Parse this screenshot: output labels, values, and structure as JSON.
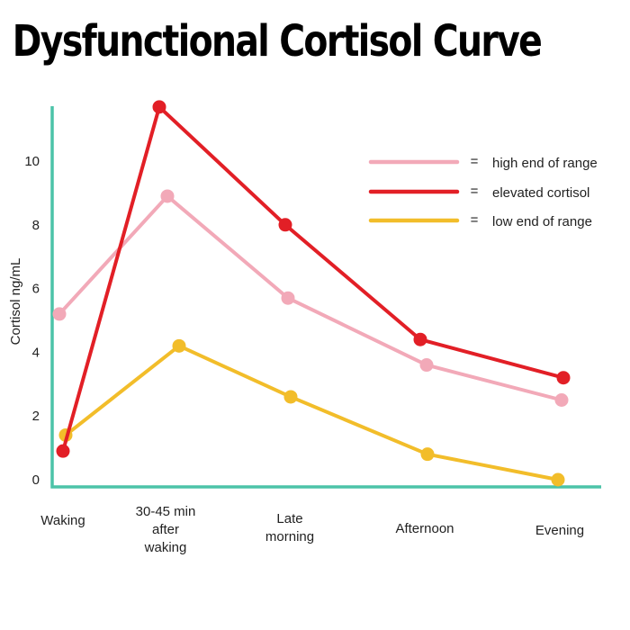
{
  "chart_data": {
    "type": "line",
    "title": "Dysfunctional Cortisol Curve",
    "xlabel": "",
    "ylabel": "Cortisol ng/mL",
    "categories": [
      "Waking",
      "30-45 min after waking",
      "Late morning",
      "Afternoon",
      "Evening"
    ],
    "yticks": [
      0,
      2,
      4,
      6,
      8,
      10
    ],
    "ylim": [
      0,
      11.5
    ],
    "legend_position": "top-right",
    "series": [
      {
        "name": "high end of range",
        "color": "#f2a9b8",
        "values": [
          5.2,
          8.9,
          5.7,
          3.6,
          2.5
        ]
      },
      {
        "name": "elevated cortisol",
        "color": "#e21f26",
        "values": [
          0.9,
          11.7,
          8.0,
          4.4,
          3.2
        ]
      },
      {
        "name": "low end of range",
        "color": "#f2bd2a",
        "values": [
          1.4,
          4.2,
          2.6,
          0.8,
          0.0
        ]
      }
    ],
    "legend_separator": "="
  },
  "colors": {
    "axis": "#4cc3a8"
  }
}
